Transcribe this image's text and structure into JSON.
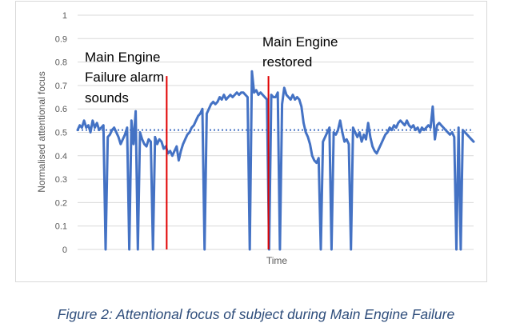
{
  "chart_data": {
    "type": "line",
    "title": "",
    "xlabel": "Time",
    "ylabel": "Normalised attentional focus",
    "ylim": [
      0,
      1
    ],
    "yticks": [
      "0",
      "0.1",
      "0.2",
      "0.3",
      "0.4",
      "0.5",
      "0.6",
      "0.7",
      "0.8",
      "0.9",
      "1"
    ],
    "grid": "horizontal",
    "legend": "none",
    "x_unit": "sample index",
    "series": [
      {
        "color": "#4472c4",
        "style": "solid",
        "values": [
          0.51,
          0.53,
          0.52,
          0.55,
          0.52,
          0.53,
          0.5,
          0.55,
          0.52,
          0.54,
          0.51,
          0.52,
          0.53,
          0.0,
          0.48,
          0.49,
          0.51,
          0.52,
          0.5,
          0.48,
          0.45,
          0.47,
          0.49,
          0.52,
          0.0,
          0.55,
          0.45,
          0.59,
          0.0,
          0.5,
          0.47,
          0.45,
          0.44,
          0.47,
          0.46,
          0.0,
          0.48,
          0.45,
          0.47,
          0.46,
          0.43,
          0.44,
          0.41,
          0.42,
          0.4,
          0.42,
          0.44,
          0.38,
          0.42,
          0.45,
          0.47,
          0.49,
          0.5,
          0.52,
          0.53,
          0.55,
          0.57,
          0.58,
          0.6,
          0.0,
          0.58,
          0.6,
          0.62,
          0.63,
          0.62,
          0.63,
          0.65,
          0.64,
          0.66,
          0.64,
          0.65,
          0.66,
          0.65,
          0.66,
          0.67,
          0.66,
          0.67,
          0.67,
          0.66,
          0.65,
          0.0,
          0.76,
          0.67,
          0.68,
          0.66,
          0.67,
          0.66,
          0.65,
          0.64,
          0.0,
          0.66,
          0.65,
          0.65,
          0.67,
          0.0,
          0.62,
          0.69,
          0.66,
          0.65,
          0.64,
          0.66,
          0.64,
          0.65,
          0.64,
          0.61,
          0.54,
          0.5,
          0.48,
          0.45,
          0.4,
          0.38,
          0.37,
          0.39,
          0.0,
          0.46,
          0.48,
          0.5,
          0.52,
          0.0,
          0.5,
          0.49,
          0.51,
          0.55,
          0.5,
          0.46,
          0.47,
          0.45,
          0.0,
          0.52,
          0.5,
          0.48,
          0.5,
          0.46,
          0.49,
          0.47,
          0.54,
          0.48,
          0.44,
          0.42,
          0.41,
          0.43,
          0.45,
          0.47,
          0.49,
          0.5,
          0.52,
          0.51,
          0.53,
          0.52,
          0.54,
          0.55,
          0.54,
          0.53,
          0.55,
          0.53,
          0.52,
          0.53,
          0.51,
          0.52,
          0.5,
          0.52,
          0.51,
          0.52,
          0.53,
          0.52,
          0.61,
          0.47,
          0.53,
          0.54,
          0.53,
          0.52,
          0.51,
          0.5,
          0.49,
          0.5,
          0.48,
          0.0,
          0.52,
          0.0,
          0.51,
          0.5,
          0.49,
          0.48,
          0.47,
          0.46
        ]
      },
      {
        "color": "#4472c4",
        "style": "dotted",
        "values": [
          0.51,
          0.51
        ]
      }
    ],
    "markers": [
      {
        "x_fraction": 0.225,
        "color": "#e00000"
      },
      {
        "x_fraction": 0.482,
        "color": "#e00000"
      }
    ],
    "annotations": [
      {
        "lines": [
          "Main Engine",
          "Failure alarm",
          "sounds"
        ]
      },
      {
        "lines": [
          "Main Engine",
          "restored"
        ]
      }
    ]
  },
  "caption": "Figure 2: Attentional focus of subject during Main Engine Failure"
}
